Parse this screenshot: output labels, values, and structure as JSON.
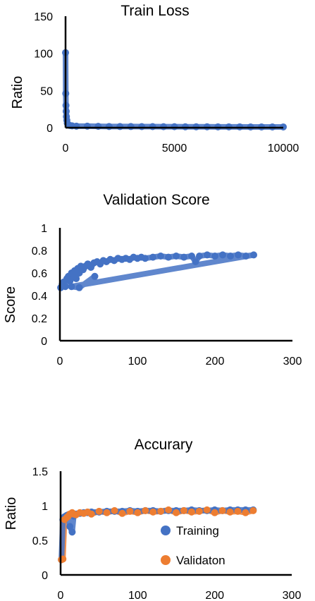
{
  "chart_data": [
    {
      "type": "scatter",
      "title": "Train Loss",
      "xlabel": "",
      "ylabel": "Ratio",
      "xlim": [
        0,
        10000
      ],
      "ylim": [
        0,
        150
      ],
      "xticks": [
        0,
        5000,
        10000
      ],
      "yticks": [
        0,
        50,
        100,
        150
      ],
      "x_tick_labels": [
        "0",
        "5000",
        "10000"
      ],
      "y_tick_labels": [
        "0",
        "50",
        "100",
        "150"
      ],
      "grid": false,
      "colors": [
        "#4472C4"
      ],
      "series": [
        {
          "x": [
            0,
            10,
            20,
            30,
            40,
            60,
            80,
            120,
            200,
            300,
            500,
            1000,
            1500,
            2000,
            2500,
            3000,
            3500,
            4000,
            4500,
            5000,
            5500,
            6000,
            6500,
            7000,
            7500,
            8000,
            8500,
            9000,
            9500,
            10000
          ],
          "values": [
            101,
            46,
            30,
            22,
            15,
            10,
            6,
            4,
            3,
            2.5,
            2,
            2,
            1.8,
            1.6,
            1.5,
            1.5,
            1.4,
            1.4,
            1.3,
            1.3,
            1.2,
            1.2,
            1.2,
            1.1,
            1.1,
            1.1,
            1,
            1,
            1,
            1
          ]
        }
      ]
    },
    {
      "type": "scatter",
      "title": "Validation Score",
      "xlabel": "",
      "ylabel": "Score",
      "xlim": [
        0,
        300
      ],
      "ylim": [
        0,
        1
      ],
      "xticks": [
        0,
        100,
        200,
        300
      ],
      "yticks": [
        0,
        0.2,
        0.4,
        0.6,
        0.8,
        1
      ],
      "x_tick_labels": [
        "0",
        "100",
        "200",
        "300"
      ],
      "y_tick_labels": [
        "0",
        "0.2",
        "0.4",
        "0.6",
        "0.8",
        "1"
      ],
      "grid": false,
      "colors": [
        "#4472C4"
      ],
      "series": [
        {
          "x": [
            1,
            3,
            5,
            7,
            9,
            11,
            13,
            15,
            17,
            19,
            21,
            23,
            25,
            27,
            30,
            33,
            36,
            40,
            44,
            48,
            52,
            56,
            60,
            65,
            70,
            75,
            80,
            85,
            90,
            95,
            100,
            105,
            110,
            120,
            130,
            140,
            150,
            160,
            170,
            175,
            180,
            190,
            200,
            210,
            220,
            230,
            240,
            250,
            15,
            25,
            45
          ],
          "values": [
            0.47,
            0.5,
            0.52,
            0.48,
            0.55,
            0.57,
            0.53,
            0.6,
            0.58,
            0.62,
            0.55,
            0.64,
            0.6,
            0.66,
            0.63,
            0.66,
            0.68,
            0.65,
            0.69,
            0.7,
            0.68,
            0.71,
            0.7,
            0.72,
            0.71,
            0.73,
            0.72,
            0.73,
            0.72,
            0.74,
            0.73,
            0.74,
            0.73,
            0.74,
            0.75,
            0.74,
            0.75,
            0.74,
            0.75,
            0.7,
            0.75,
            0.76,
            0.75,
            0.76,
            0.75,
            0.76,
            0.75,
            0.76,
            0.48,
            0.47,
            0.57
          ]
        }
      ]
    },
    {
      "type": "scatter",
      "title": "Accurary",
      "xlabel": "",
      "ylabel": "Ratio",
      "xlim": [
        0,
        300
      ],
      "ylim": [
        0,
        1.5
      ],
      "xticks": [
        0,
        100,
        200,
        300
      ],
      "yticks": [
        0,
        0.5,
        1,
        1.5
      ],
      "x_tick_labels": [
        "0",
        "100",
        "200",
        "300"
      ],
      "y_tick_labels": [
        "0",
        "0.5",
        "1",
        "1.5"
      ],
      "grid": false,
      "legend": "lower-right",
      "colors": [
        "#4472C4",
        "#ED7D31"
      ],
      "series": [
        {
          "name": "Training",
          "x": [
            1,
            3,
            5,
            8,
            10,
            12,
            15,
            17,
            20,
            25,
            30,
            35,
            40,
            50,
            60,
            70,
            80,
            90,
            100,
            110,
            120,
            130,
            140,
            150,
            160,
            170,
            180,
            190,
            200,
            210,
            220,
            230,
            240,
            250
          ],
          "values": [
            0.22,
            0.8,
            0.84,
            0.86,
            0.87,
            0.7,
            0.62,
            0.85,
            0.88,
            0.89,
            0.9,
            0.9,
            0.91,
            0.91,
            0.92,
            0.92,
            0.92,
            0.93,
            0.92,
            0.93,
            0.93,
            0.92,
            0.93,
            0.93,
            0.93,
            0.94,
            0.93,
            0.93,
            0.94,
            0.93,
            0.94,
            0.94,
            0.94,
            0.94
          ]
        },
        {
          "name": "Validaton",
          "x": [
            1,
            3,
            5,
            8,
            10,
            12,
            15,
            17,
            20,
            25,
            30,
            35,
            40,
            50,
            60,
            70,
            80,
            90,
            100,
            110,
            120,
            130,
            140,
            150,
            160,
            170,
            180,
            190,
            200,
            210,
            220,
            230,
            240,
            250
          ],
          "values": [
            0.22,
            0.23,
            0.8,
            0.83,
            0.85,
            0.88,
            0.9,
            0.88,
            0.87,
            0.9,
            0.89,
            0.91,
            0.88,
            0.92,
            0.9,
            0.93,
            0.89,
            0.92,
            0.9,
            0.93,
            0.91,
            0.92,
            0.94,
            0.9,
            0.93,
            0.91,
            0.92,
            0.94,
            0.9,
            0.93,
            0.91,
            0.92,
            0.9,
            0.93
          ]
        }
      ]
    }
  ]
}
